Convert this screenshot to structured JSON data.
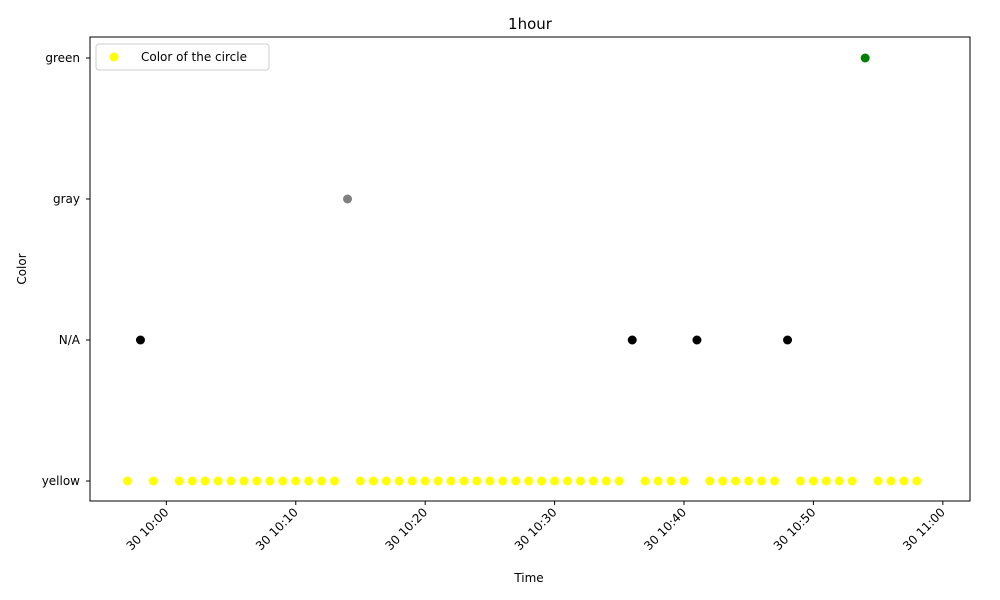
{
  "chart_data": {
    "type": "scatter",
    "title": "1hour",
    "xlabel": "Time",
    "ylabel": "Color",
    "y_categories": [
      "yellow",
      "N/A",
      "gray",
      "green"
    ],
    "x_ticks": [
      {
        "minute": 60,
        "label": "30 10:00"
      },
      {
        "minute": 70,
        "label": "30 10:10"
      },
      {
        "minute": 80,
        "label": "30 10:20"
      },
      {
        "minute": 90,
        "label": "30 10:30"
      },
      {
        "minute": 100,
        "label": "30 10:40"
      },
      {
        "minute": 110,
        "label": "30 10:50"
      },
      {
        "minute": 120,
        "label": "30 11:00"
      }
    ],
    "xlim_minutes": [
      54.1,
      122.1
    ],
    "x_reference": "day 30, 09:00 = minute 0",
    "legend": {
      "label": "Color of the circle",
      "location": "top-left",
      "marker_color": "#ffff00"
    },
    "colors": {
      "yellow": "#ffff00",
      "N/A": "#000000",
      "gray": "#808080",
      "green": "#008000"
    },
    "points": [
      {
        "minute": 57,
        "value": "yellow"
      },
      {
        "minute": 58,
        "value": "N/A"
      },
      {
        "minute": 59,
        "value": "yellow"
      },
      {
        "minute": 61,
        "value": "yellow"
      },
      {
        "minute": 62,
        "value": "yellow"
      },
      {
        "minute": 63,
        "value": "yellow"
      },
      {
        "minute": 64,
        "value": "yellow"
      },
      {
        "minute": 65,
        "value": "yellow"
      },
      {
        "minute": 66,
        "value": "yellow"
      },
      {
        "minute": 67,
        "value": "yellow"
      },
      {
        "minute": 68,
        "value": "yellow"
      },
      {
        "minute": 69,
        "value": "yellow"
      },
      {
        "minute": 70,
        "value": "yellow"
      },
      {
        "minute": 71,
        "value": "yellow"
      },
      {
        "minute": 72,
        "value": "yellow"
      },
      {
        "minute": 73,
        "value": "yellow"
      },
      {
        "minute": 74,
        "value": "gray"
      },
      {
        "minute": 75,
        "value": "yellow"
      },
      {
        "minute": 76,
        "value": "yellow"
      },
      {
        "minute": 77,
        "value": "yellow"
      },
      {
        "minute": 78,
        "value": "yellow"
      },
      {
        "minute": 79,
        "value": "yellow"
      },
      {
        "minute": 80,
        "value": "yellow"
      },
      {
        "minute": 81,
        "value": "yellow"
      },
      {
        "minute": 82,
        "value": "yellow"
      },
      {
        "minute": 83,
        "value": "yellow"
      },
      {
        "minute": 84,
        "value": "yellow"
      },
      {
        "minute": 85,
        "value": "yellow"
      },
      {
        "minute": 86,
        "value": "yellow"
      },
      {
        "minute": 87,
        "value": "yellow"
      },
      {
        "minute": 88,
        "value": "yellow"
      },
      {
        "minute": 89,
        "value": "yellow"
      },
      {
        "minute": 90,
        "value": "yellow"
      },
      {
        "minute": 91,
        "value": "yellow"
      },
      {
        "minute": 92,
        "value": "yellow"
      },
      {
        "minute": 93,
        "value": "yellow"
      },
      {
        "minute": 94,
        "value": "yellow"
      },
      {
        "minute": 95,
        "value": "yellow"
      },
      {
        "minute": 96,
        "value": "N/A"
      },
      {
        "minute": 97,
        "value": "yellow"
      },
      {
        "minute": 98,
        "value": "yellow"
      },
      {
        "minute": 99,
        "value": "yellow"
      },
      {
        "minute": 100,
        "value": "yellow"
      },
      {
        "minute": 101,
        "value": "N/A"
      },
      {
        "minute": 102,
        "value": "yellow"
      },
      {
        "minute": 103,
        "value": "yellow"
      },
      {
        "minute": 104,
        "value": "yellow"
      },
      {
        "minute": 105,
        "value": "yellow"
      },
      {
        "minute": 106,
        "value": "yellow"
      },
      {
        "minute": 107,
        "value": "yellow"
      },
      {
        "minute": 108,
        "value": "N/A"
      },
      {
        "minute": 109,
        "value": "yellow"
      },
      {
        "minute": 110,
        "value": "yellow"
      },
      {
        "minute": 111,
        "value": "yellow"
      },
      {
        "minute": 112,
        "value": "yellow"
      },
      {
        "minute": 113,
        "value": "yellow"
      },
      {
        "minute": 114,
        "value": "green"
      },
      {
        "minute": 115,
        "value": "yellow"
      },
      {
        "minute": 116,
        "value": "yellow"
      },
      {
        "minute": 117,
        "value": "yellow"
      },
      {
        "minute": 118,
        "value": "yellow"
      }
    ]
  }
}
